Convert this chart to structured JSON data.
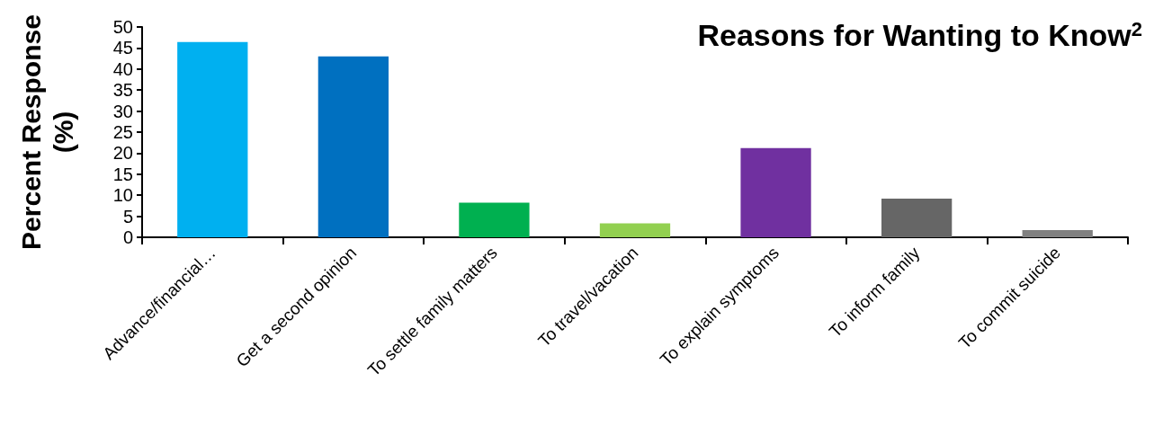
{
  "chart_data": {
    "type": "bar",
    "title": "Reasons for Wanting to Know$^{2}$",
    "ylabel": "Percent Response\n(%)",
    "categories": [
      "Advance/financial…",
      "Get a second opinion",
      "To settle family matters",
      "To travel/vacation",
      "To explain symptoms",
      "To inform family",
      "To commit suicide"
    ],
    "values": [
      46.4,
      43.0,
      8.2,
      3.3,
      21.2,
      9.2,
      1.7
    ],
    "colors": [
      "#00b0f0",
      "#0070c0",
      "#00b050",
      "#92d050",
      "#7030a0",
      "#666666",
      "#808080"
    ],
    "ylim": [
      0,
      50
    ],
    "yticks": [
      0,
      5,
      10,
      15,
      20,
      25,
      30,
      35,
      40,
      45,
      50
    ],
    "grid": false
  }
}
